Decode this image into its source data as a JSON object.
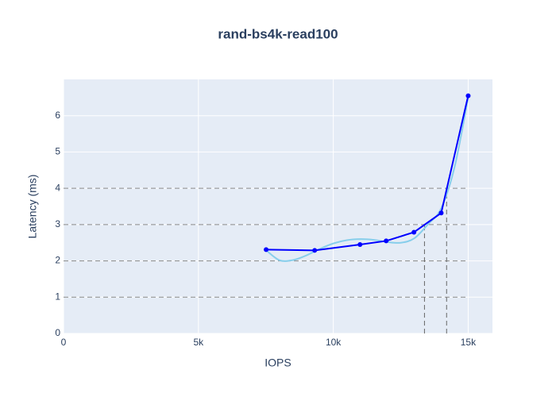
{
  "chart_data": {
    "type": "line",
    "title": "rand-bs4k-read100",
    "x_label": "IOPS",
    "y_label": "Latency (ms)",
    "series": [
      {
        "color": "#87ceeb",
        "smooth": true,
        "markers": false,
        "x": [
          7500,
          8000,
          8500,
          9000,
          9500,
          10000,
          10500,
          11000,
          11500,
          12000,
          12500,
          13000,
          13500,
          14000,
          14500,
          15000
        ],
        "values": [
          2.3,
          2.02,
          2.02,
          2.15,
          2.33,
          2.48,
          2.57,
          2.6,
          2.58,
          2.52,
          2.5,
          2.62,
          3.0,
          3.45,
          4.6,
          6.5
        ]
      },
      {
        "color": "#0000ff",
        "smooth": false,
        "markers": true,
        "x": [
          7510,
          9310,
          10990,
          11960,
          12990,
          14000,
          15000
        ],
        "values": [
          2.31,
          2.29,
          2.45,
          2.55,
          2.79,
          3.32,
          6.55
        ]
      }
    ],
    "hlines": [
      1,
      2,
      3,
      4
    ],
    "vlines": [
      {
        "x": 13380,
        "y": 3
      },
      {
        "x": 14200,
        "y": 4
      }
    ],
    "xlim": [
      0,
      15900
    ],
    "ylim": [
      0,
      7
    ],
    "xticks": [
      0,
      {
        "value": 5000,
        "label": "5k"
      },
      {
        "value": 10000,
        "label": "10k"
      },
      {
        "value": 15000,
        "label": "15k"
      }
    ],
    "yticks": [
      0,
      1,
      2,
      3,
      4,
      5,
      6
    ],
    "grid": true
  }
}
